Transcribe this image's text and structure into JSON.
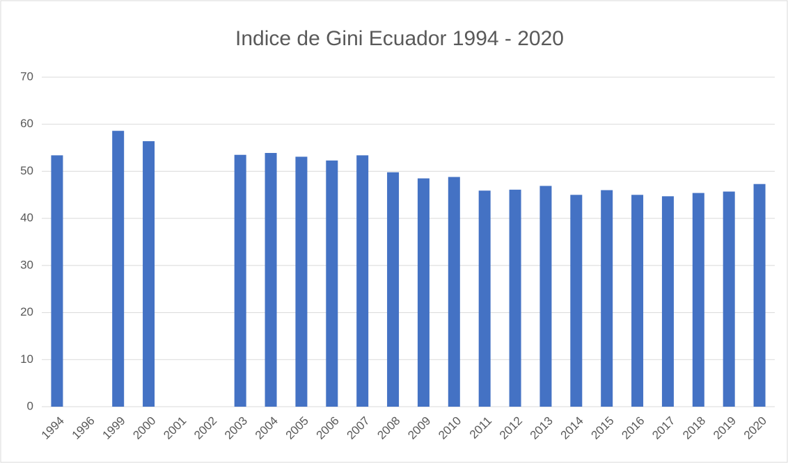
{
  "chart_data": {
    "type": "bar",
    "title": "Indice de Gini Ecuador 1994 - 2020",
    "categories": [
      "1994",
      "1996",
      "1999",
      "2000",
      "2001",
      "2002",
      "2003",
      "2004",
      "2005",
      "2006",
      "2007",
      "2008",
      "2009",
      "2010",
      "2011",
      "2012",
      "2013",
      "2014",
      "2015",
      "2016",
      "2017",
      "2018",
      "2019",
      "2020"
    ],
    "values": [
      53.4,
      null,
      58.6,
      56.4,
      null,
      null,
      53.5,
      53.9,
      53.1,
      52.3,
      53.4,
      49.8,
      48.5,
      48.8,
      45.9,
      46.1,
      46.9,
      45.0,
      46.0,
      45.0,
      44.7,
      45.4,
      45.7,
      47.3
    ],
    "color": "#4472c4",
    "ylim": [
      0,
      70
    ],
    "yticks": [
      0,
      10,
      20,
      30,
      40,
      50,
      60,
      70
    ],
    "grid": true
  }
}
